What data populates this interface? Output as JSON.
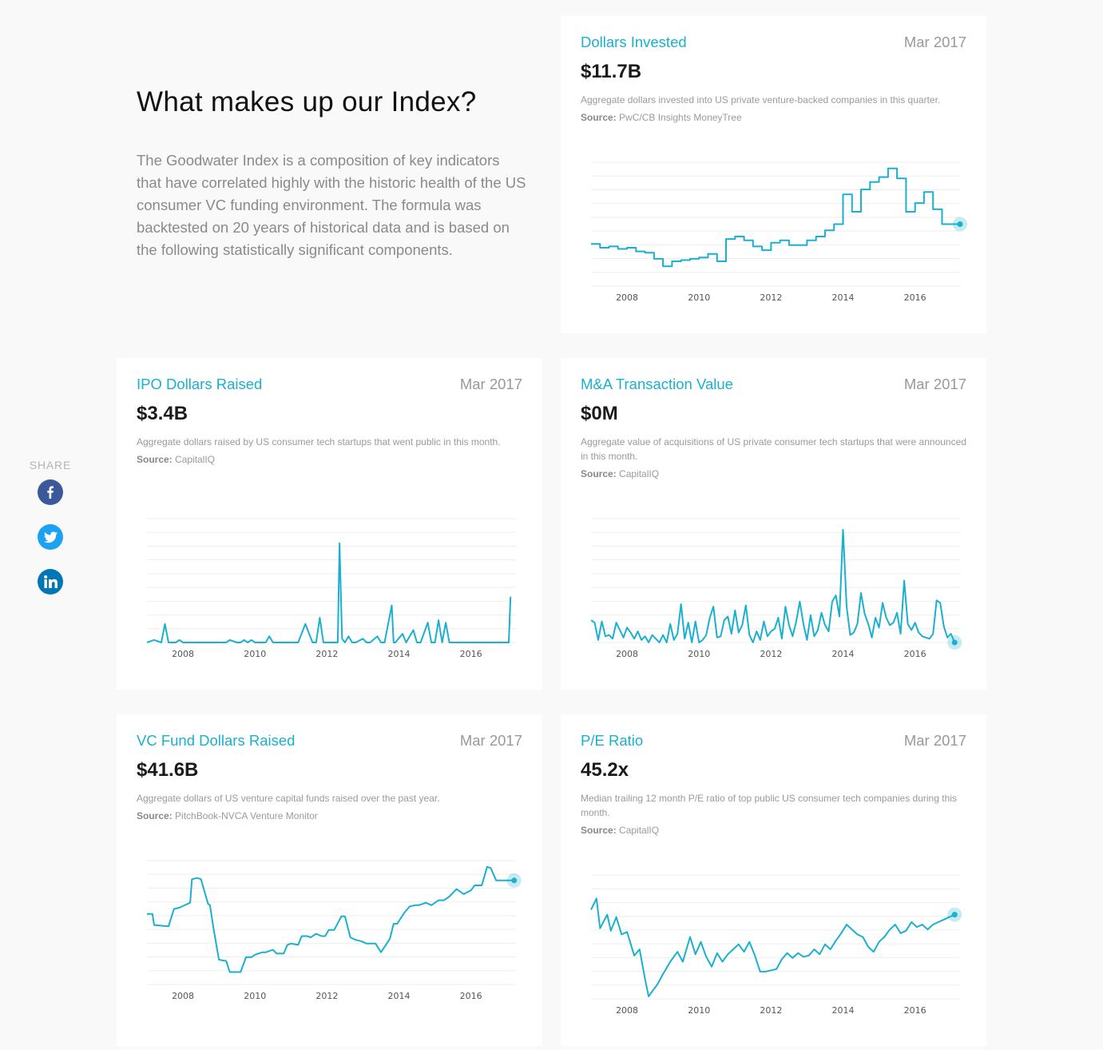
{
  "intro": {
    "title": "What makes up our Index?",
    "body": "The Goodwater Index is a composition of key indicators that have correlated highly with the historic health of the US consumer VC funding environment. The formula was backtested on 20 years of historical data and is based on the following statistically significant components."
  },
  "share": {
    "label": "SHARE",
    "facebook_icon": "facebook-icon",
    "twitter_icon": "twitter-icon",
    "linkedin_icon": "linkedin-icon",
    "facebook_color": "#3b5998",
    "twitter_color": "#1da1f2",
    "linkedin_color": "#0077b5"
  },
  "colors": {
    "accent": "#1ab0cf",
    "line": "#1ab0cf",
    "grid": "#eeeeee"
  },
  "cards": [
    {
      "title": "Dollars Invested",
      "date": "Mar 2017",
      "value": "$11.7B",
      "description": "Aggregate dollars invested into US private venture-backed companies in this quarter.",
      "source_label": "Source:",
      "source": "PwC/CB Insights MoneyTree"
    },
    {
      "title": "IPO Dollars Raised",
      "date": "Mar 2017",
      "value": "$3.4B",
      "description": "Aggregate dollars raised by US consumer tech startups that went public in this month.",
      "source_label": "Source:",
      "source": "CapitalIQ"
    },
    {
      "title": "M&A Transaction Value",
      "date": "Mar 2017",
      "value": "$0M",
      "description": "Aggregate value of acquisitions of US private consumer tech startups that were announced in this month.",
      "source_label": "Source:",
      "source": "CapitalIQ"
    },
    {
      "title": "VC Fund Dollars Raised",
      "date": "Mar 2017",
      "value": "$41.6B",
      "description": "Aggregate dollars of US venture capital funds raised over the past year.",
      "source_label": "Source:",
      "source": "PitchBook-NVCA Venture Monitor"
    },
    {
      "title": "P/E Ratio",
      "date": "Mar 2017",
      "value": "45.2x",
      "description": "Median trailing 12 month P/E ratio of top public US consumer tech companies during this month.",
      "source_label": "Source:",
      "source": "CapitalIQ"
    }
  ],
  "chart_data": [
    {
      "type": "line",
      "title": "Dollars Invested",
      "xlim": [
        2007.0,
        2017.25
      ],
      "ylim": [
        0,
        1
      ],
      "xticks": [
        2008,
        2010,
        2012,
        2014,
        2016
      ],
      "grid": true,
      "end_marker": true,
      "series": [
        {
          "x": [
            2007.0,
            2007.25,
            2007.25,
            2007.5,
            2007.5,
            2007.75,
            2007.75,
            2008.0,
            2008.0,
            2008.25,
            2008.25,
            2008.5,
            2008.5,
            2008.75,
            2008.75,
            2009.0,
            2009.0,
            2009.25,
            2009.25,
            2009.5,
            2009.5,
            2009.75,
            2009.75,
            2010.0,
            2010.0,
            2010.25,
            2010.25,
            2010.5,
            2010.5,
            2010.75,
            2010.75,
            2011.0,
            2011.0,
            2011.25,
            2011.25,
            2011.5,
            2011.5,
            2011.75,
            2011.75,
            2012.0,
            2012.0,
            2012.25,
            2012.25,
            2012.5,
            2012.5,
            2012.75,
            2012.75,
            2013.0,
            2013.0,
            2013.25,
            2013.25,
            2013.5,
            2013.5,
            2013.75,
            2013.75,
            2014.0,
            2014.0,
            2014.25,
            2014.25,
            2014.5,
            2014.5,
            2014.75,
            2014.75,
            2015.0,
            2015.0,
            2015.25,
            2015.25,
            2015.5,
            2015.5,
            2015.75,
            2015.75,
            2016.0,
            2016.0,
            2016.25,
            2016.25,
            2016.5,
            2016.5,
            2016.75,
            2016.75,
            2017.0,
            2017.0,
            2017.25
          ],
          "y": [
            0.34,
            0.34,
            0.31,
            0.31,
            0.32,
            0.32,
            0.3,
            0.3,
            0.31,
            0.31,
            0.28,
            0.28,
            0.27,
            0.27,
            0.22,
            0.22,
            0.16,
            0.16,
            0.2,
            0.2,
            0.21,
            0.21,
            0.22,
            0.22,
            0.23,
            0.23,
            0.26,
            0.26,
            0.2,
            0.2,
            0.38,
            0.38,
            0.4,
            0.4,
            0.37,
            0.37,
            0.32,
            0.32,
            0.29,
            0.29,
            0.35,
            0.35,
            0.37,
            0.37,
            0.33,
            0.33,
            0.33,
            0.33,
            0.37,
            0.37,
            0.4,
            0.4,
            0.45,
            0.45,
            0.5,
            0.5,
            0.74,
            0.74,
            0.6,
            0.6,
            0.78,
            0.78,
            0.84,
            0.84,
            0.88,
            0.88,
            0.95,
            0.95,
            0.87,
            0.87,
            0.6,
            0.6,
            0.67,
            0.67,
            0.76,
            0.76,
            0.62,
            0.62,
            0.5,
            0.5,
            0.5,
            0.5
          ]
        }
      ]
    },
    {
      "type": "line",
      "title": "IPO Dollars Raised",
      "xlim": [
        2007.0,
        2017.25
      ],
      "ylim": [
        0,
        1
      ],
      "xticks": [
        2008,
        2010,
        2012,
        2014,
        2016
      ],
      "grid": true,
      "end_marker": false,
      "series": [
        {
          "x": [
            2007.0,
            2007.2,
            2007.4,
            2007.5,
            2007.6,
            2007.8,
            2007.9,
            2008.0,
            2008.2,
            2009.2,
            2009.3,
            2009.5,
            2009.6,
            2009.7,
            2009.8,
            2009.9,
            2010.0,
            2010.3,
            2010.4,
            2010.5,
            2011.2,
            2011.4,
            2011.6,
            2011.7,
            2011.8,
            2011.9,
            2012.2,
            2012.3,
            2012.35,
            2012.42,
            2012.5,
            2012.6,
            2012.7,
            2012.8,
            2013.0,
            2013.1,
            2013.2,
            2013.4,
            2013.5,
            2013.6,
            2013.8,
            2013.85,
            2013.9,
            2014.1,
            2014.2,
            2014.3,
            2014.4,
            2014.5,
            2014.6,
            2014.8,
            2014.9,
            2015.0,
            2015.1,
            2015.2,
            2015.3,
            2015.4,
            2015.5,
            2015.6,
            2015.7,
            2015.9,
            2016.0,
            2016.2,
            2016.3,
            2016.5,
            2017.0,
            2017.05,
            2017.1
          ],
          "y": [
            0.0,
            0.02,
            0.0,
            0.15,
            0.0,
            0.0,
            0.02,
            0.0,
            0.0,
            0.0,
            0.02,
            0.0,
            0.0,
            0.02,
            0.0,
            0.02,
            0.0,
            0.0,
            0.05,
            0.0,
            0.0,
            0.15,
            0.0,
            0.0,
            0.2,
            0.0,
            0.0,
            0.0,
            0.8,
            0.03,
            0.0,
            0.05,
            0.0,
            0.0,
            0.03,
            0.0,
            0.0,
            0.05,
            0.0,
            0.0,
            0.3,
            0.0,
            0.0,
            0.07,
            0.0,
            0.05,
            0.1,
            0.0,
            0.0,
            0.16,
            0.0,
            0.0,
            0.18,
            0.0,
            0.16,
            0.0,
            0.0,
            0.0,
            0.0,
            0.0,
            0.0,
            0.0,
            0.0,
            0.0,
            0.0,
            0.0,
            0.37
          ]
        }
      ]
    },
    {
      "type": "line",
      "title": "M&A Transaction Value",
      "xlim": [
        2007.0,
        2017.25
      ],
      "ylim": [
        0,
        1
      ],
      "xticks": [
        2008,
        2010,
        2012,
        2014,
        2016
      ],
      "grid": true,
      "end_marker": true,
      "series": [
        {
          "x": [
            2007.0,
            2007.1,
            2007.2,
            2007.3,
            2007.4,
            2007.5,
            2007.6,
            2007.7,
            2007.8,
            2007.9,
            2008.0,
            2008.1,
            2008.2,
            2008.3,
            2008.4,
            2008.5,
            2008.6,
            2008.7,
            2008.8,
            2008.9,
            2009.0,
            2009.1,
            2009.2,
            2009.3,
            2009.4,
            2009.5,
            2009.6,
            2009.7,
            2009.8,
            2009.9,
            2010.0,
            2010.1,
            2010.2,
            2010.3,
            2010.4,
            2010.5,
            2010.6,
            2010.7,
            2010.8,
            2010.9,
            2011.0,
            2011.1,
            2011.2,
            2011.3,
            2011.4,
            2011.5,
            2011.6,
            2011.7,
            2011.8,
            2011.9,
            2012.0,
            2012.1,
            2012.2,
            2012.3,
            2012.4,
            2012.5,
            2012.6,
            2012.7,
            2012.8,
            2012.9,
            2013.0,
            2013.1,
            2013.2,
            2013.3,
            2013.4,
            2013.5,
            2013.6,
            2013.7,
            2013.8,
            2013.9,
            2014.0,
            2014.1,
            2014.2,
            2014.3,
            2014.4,
            2014.5,
            2014.6,
            2014.7,
            2014.8,
            2014.9,
            2015.0,
            2015.1,
            2015.2,
            2015.3,
            2015.4,
            2015.5,
            2015.6,
            2015.7,
            2015.8,
            2015.9,
            2016.0,
            2016.1,
            2016.2,
            2016.3,
            2016.4,
            2016.5,
            2016.6,
            2016.7,
            2016.8,
            2016.9,
            2017.0,
            2017.1
          ],
          "y": [
            0.18,
            0.16,
            0.02,
            0.17,
            0.05,
            0.06,
            0.03,
            0.16,
            0.1,
            0.04,
            0.12,
            0.08,
            0.03,
            0.09,
            0.02,
            0.05,
            0.0,
            0.06,
            0.03,
            0.0,
            0.06,
            0.0,
            0.15,
            0.02,
            0.07,
            0.31,
            0.03,
            0.16,
            0.0,
            0.17,
            0.0,
            0.02,
            0.06,
            0.2,
            0.29,
            0.04,
            0.05,
            0.18,
            0.21,
            0.07,
            0.26,
            0.08,
            0.14,
            0.3,
            0.06,
            0.0,
            0.09,
            0.02,
            0.17,
            0.05,
            0.09,
            0.11,
            0.2,
            0.03,
            0.29,
            0.14,
            0.05,
            0.17,
            0.33,
            0.15,
            0.02,
            0.22,
            0.05,
            0.1,
            0.24,
            0.14,
            0.09,
            0.33,
            0.38,
            0.21,
            0.91,
            0.29,
            0.06,
            0.08,
            0.15,
            0.4,
            0.23,
            0.15,
            0.04,
            0.2,
            0.12,
            0.32,
            0.2,
            0.14,
            0.16,
            0.24,
            0.07,
            0.5,
            0.15,
            0.1,
            0.16,
            0.08,
            0.05,
            0.04,
            0.03,
            0.07,
            0.34,
            0.32,
            0.13,
            0.04,
            0.07,
            0.0
          ]
        }
      ]
    },
    {
      "type": "line",
      "title": "VC Fund Dollars Raised",
      "xlim": [
        2007.0,
        2017.25
      ],
      "ylim": [
        0,
        1
      ],
      "xticks": [
        2008,
        2010,
        2012,
        2014,
        2016
      ],
      "grid": true,
      "end_marker": true,
      "series": [
        {
          "x": [
            2007.0,
            2007.15,
            2007.2,
            2007.6,
            2007.75,
            2007.9,
            2008.2,
            2008.25,
            2008.4,
            2008.5,
            2008.7,
            2008.75,
            2008.85,
            2009.0,
            2009.2,
            2009.3,
            2009.6,
            2009.75,
            2009.9,
            2010.0,
            2010.1,
            2010.2,
            2010.3,
            2010.5,
            2010.6,
            2010.8,
            2010.9,
            2011.0,
            2011.2,
            2011.3,
            2011.45,
            2011.55,
            2011.7,
            2011.85,
            2011.95,
            2012.05,
            2012.2,
            2012.4,
            2012.5,
            2012.65,
            2012.8,
            2012.95,
            2013.1,
            2013.35,
            2013.5,
            2013.75,
            2013.85,
            2013.95,
            2014.15,
            2014.3,
            2014.45,
            2014.55,
            2014.75,
            2014.9,
            2015.1,
            2015.25,
            2015.4,
            2015.6,
            2015.8,
            2016.0,
            2016.1,
            2016.3,
            2016.45,
            2016.55,
            2016.7,
            2016.9,
            2017.0,
            2017.2
          ],
          "y": [
            0.57,
            0.57,
            0.48,
            0.47,
            0.61,
            0.62,
            0.66,
            0.85,
            0.86,
            0.85,
            0.65,
            0.64,
            0.45,
            0.2,
            0.19,
            0.1,
            0.1,
            0.22,
            0.22,
            0.24,
            0.25,
            0.26,
            0.26,
            0.28,
            0.25,
            0.25,
            0.32,
            0.33,
            0.32,
            0.39,
            0.39,
            0.38,
            0.41,
            0.39,
            0.39,
            0.44,
            0.44,
            0.55,
            0.55,
            0.38,
            0.36,
            0.35,
            0.33,
            0.33,
            0.26,
            0.37,
            0.49,
            0.49,
            0.58,
            0.63,
            0.64,
            0.64,
            0.66,
            0.64,
            0.68,
            0.68,
            0.71,
            0.77,
            0.73,
            0.76,
            0.8,
            0.8,
            0.95,
            0.94,
            0.84,
            0.84,
            0.84,
            0.84
          ]
        }
      ]
    },
    {
      "type": "line",
      "title": "P/E Ratio",
      "xlim": [
        2007.0,
        2017.25
      ],
      "ylim": [
        0,
        1
      ],
      "xticks": [
        2008,
        2010,
        2012,
        2014,
        2016
      ],
      "grid": true,
      "end_marker": true,
      "series": [
        {
          "x": [
            2007.0,
            2007.15,
            2007.25,
            2007.45,
            2007.55,
            2007.7,
            2007.85,
            2008.0,
            2008.2,
            2008.35,
            2008.5,
            2008.6,
            2008.7,
            2008.85,
            2009.0,
            2009.2,
            2009.4,
            2009.55,
            2009.75,
            2009.9,
            2010.05,
            2010.2,
            2010.35,
            2010.5,
            2010.65,
            2010.8,
            2010.95,
            2011.1,
            2011.25,
            2011.4,
            2011.55,
            2011.7,
            2011.85,
            2012.0,
            2012.15,
            2012.3,
            2012.45,
            2012.6,
            2012.75,
            2012.9,
            2013.05,
            2013.2,
            2013.35,
            2013.5,
            2013.65,
            2013.8,
            2013.95,
            2014.1,
            2014.25,
            2014.4,
            2014.55,
            2014.7,
            2014.85,
            2015.0,
            2015.15,
            2015.3,
            2015.45,
            2015.6,
            2015.75,
            2015.9,
            2016.05,
            2016.2,
            2016.35,
            2016.5,
            2016.65,
            2016.8,
            2016.95,
            2017.1
          ],
          "y": [
            0.72,
            0.81,
            0.57,
            0.68,
            0.55,
            0.66,
            0.52,
            0.54,
            0.35,
            0.4,
            0.16,
            0.02,
            0.06,
            0.12,
            0.2,
            0.3,
            0.38,
            0.3,
            0.5,
            0.36,
            0.46,
            0.34,
            0.26,
            0.37,
            0.3,
            0.36,
            0.4,
            0.44,
            0.38,
            0.46,
            0.35,
            0.22,
            0.22,
            0.23,
            0.24,
            0.32,
            0.37,
            0.33,
            0.37,
            0.34,
            0.35,
            0.4,
            0.36,
            0.44,
            0.4,
            0.47,
            0.53,
            0.6,
            0.56,
            0.52,
            0.5,
            0.42,
            0.38,
            0.46,
            0.5,
            0.56,
            0.6,
            0.53,
            0.55,
            0.62,
            0.58,
            0.6,
            0.56,
            0.6,
            0.62,
            0.64,
            0.66,
            0.68
          ]
        }
      ]
    }
  ]
}
